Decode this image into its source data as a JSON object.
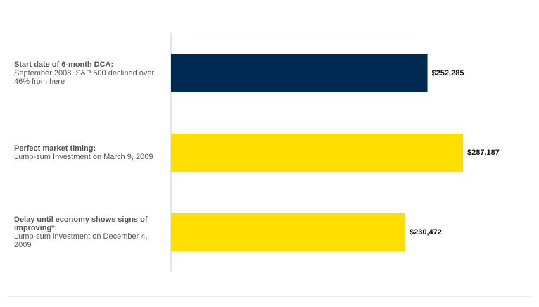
{
  "chart_data": {
    "type": "hbar",
    "categories": [
      {
        "title": "Start date of 6-month DCA:",
        "detail": "September 2008. S&P 500 declined over 46% from here"
      },
      {
        "title": "Perfect market timing:",
        "detail": "Lump-sum Investment on March 9, 2009"
      },
      {
        "title": "Delay until economy shows signs of improving*:",
        "detail": "Lump-sum investment on December 4, 2009"
      }
    ],
    "values": [
      252285,
      287187,
      230472
    ],
    "value_labels": [
      "$252,285",
      "$287,187",
      "$230,472"
    ],
    "colors": [
      "#002a52",
      "#ffde00",
      "#ffde00"
    ]
  }
}
